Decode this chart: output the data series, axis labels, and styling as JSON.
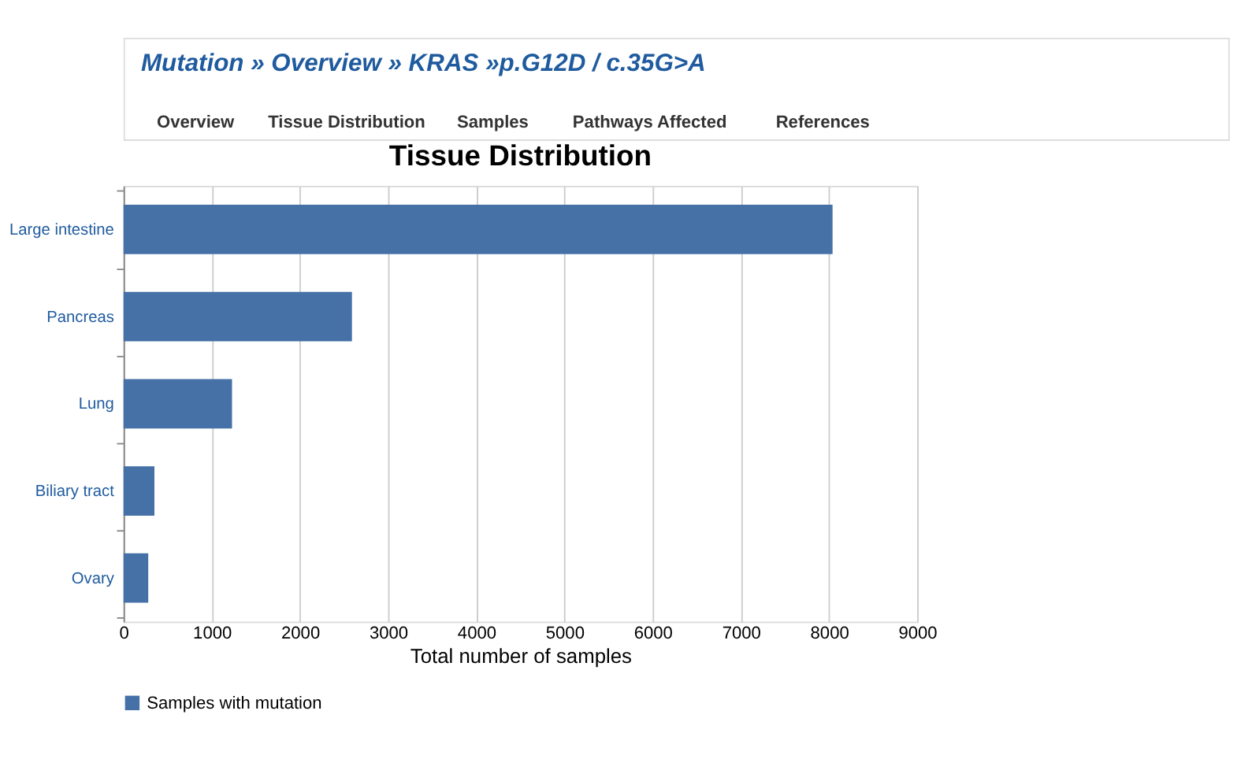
{
  "chart_data": {
    "type": "bar",
    "orientation": "horizontal",
    "title": "Tissue Distribution",
    "annotations": [
      "Mutation » Overview » KRAS »p.G12D / c.35G>A",
      "Overview",
      "Tissue Distribution",
      "Samples",
      "Pathways Affected",
      "References"
    ],
    "categories": [
      "Large intestine",
      "Pancreas",
      "Lung",
      "Biliary tract",
      "Ovary"
    ],
    "series": [
      {
        "name": "Samples with mutation",
        "color": "#4571a7",
        "values": [
          8040,
          2590,
          1230,
          350,
          280
        ]
      }
    ],
    "xlabel": "Total number of samples",
    "xlim": [
      0,
      9000
    ],
    "xticks": [
      0,
      1000,
      2000,
      3000,
      4000,
      5000,
      6000,
      7000,
      8000,
      9000
    ],
    "grid": "x",
    "legend": "bottom"
  }
}
